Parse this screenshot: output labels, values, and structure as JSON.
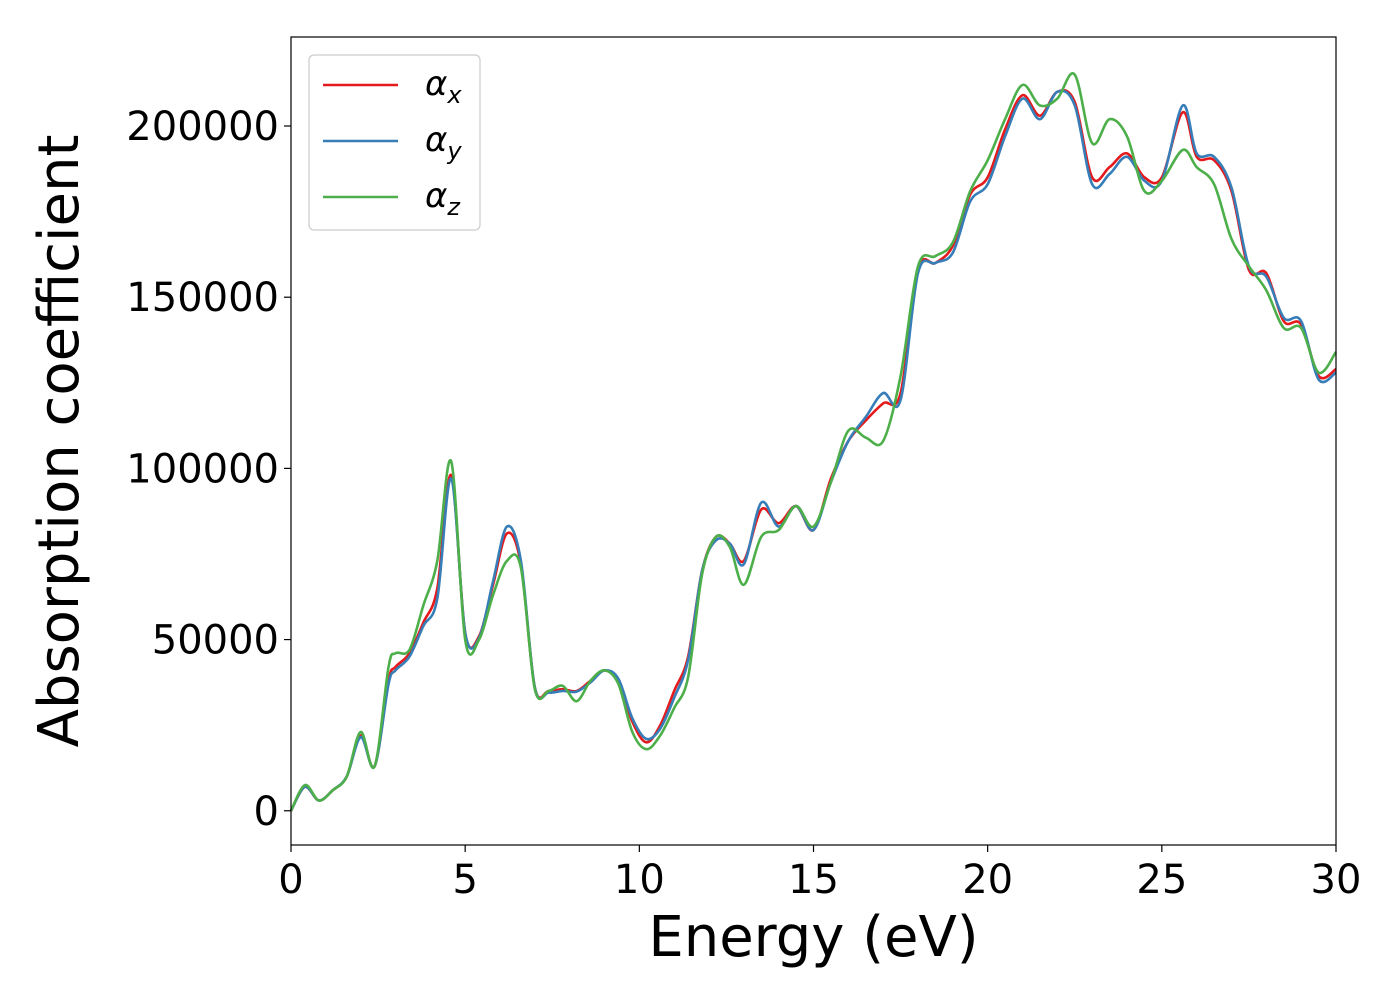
{
  "chart_data": {
    "type": "line",
    "xlabel": "Energy (eV)",
    "ylabel": "Absorption coefficient",
    "xlim": [
      0,
      30
    ],
    "ylim": [
      -10000,
      226000
    ],
    "xticks": [
      0,
      5,
      10,
      15,
      20,
      25,
      30
    ],
    "xtick_labels": [
      "0",
      "5",
      "10",
      "15",
      "20",
      "25",
      "30"
    ],
    "yticks": [
      0,
      50000,
      100000,
      150000,
      200000
    ],
    "ytick_labels": [
      "0",
      "50000",
      "100000",
      "150000",
      "200000"
    ],
    "grid": false,
    "legend_position": "top-left",
    "series": [
      {
        "name_main": "α",
        "name_sub": "x",
        "color": "#e41a1c",
        "x": [
          0,
          0.4,
          0.8,
          1.2,
          1.6,
          2.0,
          2.4,
          2.8,
          3.0,
          3.4,
          3.8,
          4.2,
          4.6,
          5.0,
          5.4,
          5.8,
          6.2,
          6.6,
          7.0,
          7.4,
          7.8,
          8.2,
          8.6,
          9.0,
          9.4,
          9.8,
          10.2,
          10.6,
          11.0,
          11.4,
          11.8,
          12.2,
          12.6,
          13.0,
          13.5,
          14.0,
          14.5,
          15.0,
          15.5,
          16.0,
          16.5,
          17.0,
          17.5,
          18.0,
          18.5,
          19.0,
          19.5,
          20.0,
          20.5,
          21.0,
          21.5,
          22.0,
          22.5,
          23.0,
          23.5,
          24.0,
          24.5,
          25.0,
          25.6,
          26.0,
          26.5,
          27.0,
          27.5,
          28.0,
          28.5,
          29.0,
          29.5,
          30.0
        ],
        "y": [
          0,
          7000,
          3000,
          6000,
          10000,
          22000,
          13000,
          38000,
          42000,
          46000,
          55000,
          65000,
          98000,
          52000,
          51000,
          66000,
          81000,
          72000,
          36000,
          35000,
          35500,
          35000,
          38000,
          41000,
          38000,
          26000,
          20000,
          25000,
          35000,
          45000,
          70000,
          80000,
          78000,
          73000,
          88000,
          84000,
          89000,
          82000,
          97000,
          108000,
          114000,
          119000,
          122000,
          158000,
          160000,
          165000,
          180000,
          185000,
          199000,
          209000,
          203000,
          210000,
          207000,
          185000,
          188000,
          192000,
          185000,
          185000,
          204000,
          191000,
          190000,
          181000,
          158000,
          157000,
          143000,
          142000,
          127000,
          129000
        ]
      },
      {
        "name_main": "α",
        "name_sub": "y",
        "color": "#377eb8",
        "x": [
          0,
          0.4,
          0.8,
          1.2,
          1.6,
          2.0,
          2.4,
          2.8,
          3.0,
          3.4,
          3.8,
          4.2,
          4.6,
          5.0,
          5.4,
          5.8,
          6.2,
          6.6,
          7.0,
          7.4,
          7.8,
          8.2,
          8.6,
          9.0,
          9.4,
          9.8,
          10.2,
          10.6,
          11.0,
          11.4,
          11.8,
          12.2,
          12.6,
          13.0,
          13.5,
          14.0,
          14.5,
          15.0,
          15.5,
          16.0,
          16.5,
          17.0,
          17.5,
          18.0,
          18.5,
          19.0,
          19.5,
          20.0,
          20.5,
          21.0,
          21.5,
          22.0,
          22.5,
          23.0,
          23.5,
          24.0,
          24.5,
          25.0,
          25.6,
          26.0,
          26.5,
          27.0,
          27.5,
          28.0,
          28.5,
          29.0,
          29.5,
          30.0
        ],
        "y": [
          0,
          7000,
          3000,
          6000,
          10000,
          21500,
          13000,
          37000,
          41000,
          45000,
          54000,
          62000,
          97000,
          52000,
          50500,
          67000,
          83000,
          73000,
          36000,
          34500,
          35000,
          34800,
          37500,
          41000,
          38500,
          27000,
          21000,
          24000,
          33000,
          44000,
          70000,
          79000,
          78000,
          72000,
          90000,
          83000,
          89000,
          82000,
          96000,
          108000,
          115000,
          122000,
          120000,
          157000,
          160000,
          163000,
          178000,
          183000,
          197000,
          208000,
          202000,
          210000,
          206000,
          183000,
          186000,
          191000,
          184000,
          184000,
          206000,
          192000,
          191000,
          182000,
          159000,
          156000,
          144000,
          143000,
          126000,
          128000
        ]
      },
      {
        "name_main": "α",
        "name_sub": "z",
        "color": "#4daf4a",
        "x": [
          0,
          0.4,
          0.8,
          1.2,
          1.6,
          2.0,
          2.4,
          2.8,
          3.0,
          3.4,
          3.8,
          4.2,
          4.6,
          5.0,
          5.4,
          5.8,
          6.2,
          6.6,
          7.0,
          7.4,
          7.8,
          8.2,
          8.6,
          9.0,
          9.4,
          9.8,
          10.2,
          10.6,
          11.0,
          11.4,
          11.8,
          12.2,
          12.6,
          13.0,
          13.5,
          14.0,
          14.5,
          15.0,
          15.5,
          16.0,
          16.5,
          17.0,
          17.5,
          18.0,
          18.5,
          19.0,
          19.5,
          20.0,
          20.5,
          21.0,
          21.5,
          22.0,
          22.5,
          23.0,
          23.5,
          24.0,
          24.5,
          25.0,
          25.6,
          26.0,
          26.5,
          27.0,
          27.5,
          28.0,
          28.5,
          29.0,
          29.5,
          30.0
        ],
        "y": [
          0,
          7500,
          3000,
          6000,
          10000,
          23000,
          13000,
          42000,
          46000,
          47000,
          60000,
          73000,
          102000,
          50000,
          50000,
          63000,
          73000,
          71000,
          35500,
          35000,
          36500,
          32000,
          38000,
          41000,
          37000,
          23000,
          18000,
          22000,
          30000,
          39000,
          69000,
          80000,
          77000,
          66000,
          80000,
          82000,
          89000,
          83000,
          96000,
          111000,
          109000,
          108000,
          127000,
          159000,
          162000,
          166000,
          181000,
          190000,
          202000,
          212000,
          206000,
          208000,
          215000,
          195000,
          202000,
          197000,
          181000,
          184000,
          193000,
          188000,
          183000,
          167000,
          159000,
          152000,
          141000,
          141000,
          128000,
          134000
        ]
      }
    ]
  }
}
